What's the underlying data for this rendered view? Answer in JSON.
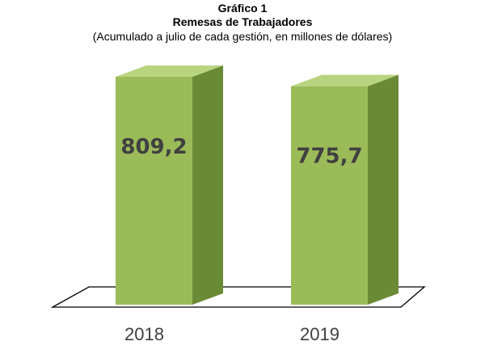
{
  "chart_data": {
    "type": "bar",
    "title": "Gráfico 1",
    "subtitle": "Remesas de Trabajadores",
    "note": "(Acumulado a julio de cada gestión, en millones de dólares)",
    "categories": [
      "2018",
      "2019"
    ],
    "values": [
      809.2,
      775.7
    ],
    "value_labels": [
      "809,2",
      "775,7"
    ],
    "colors": {
      "front": "#9bbb59",
      "side": "#6b8a36",
      "top": "#b9d47f"
    },
    "grid": false,
    "legend": "none"
  }
}
